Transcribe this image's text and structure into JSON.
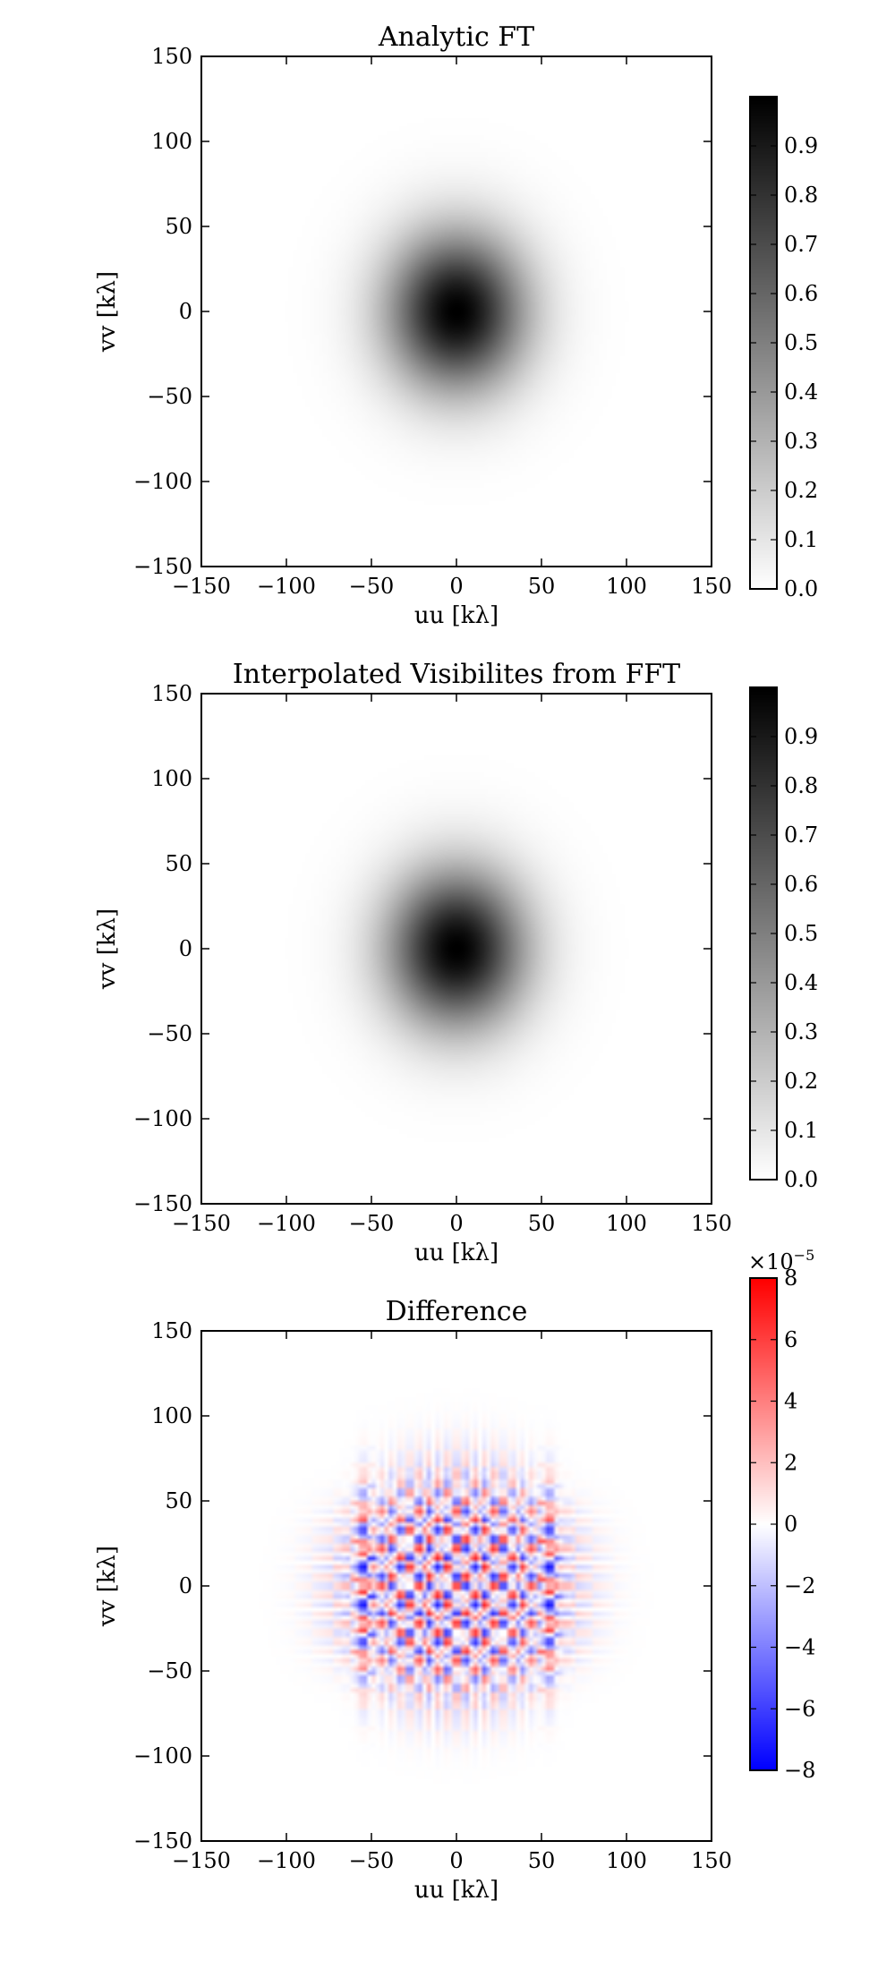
{
  "chart_data": [
    {
      "type": "heatmap",
      "title": "Analytic FT",
      "xlabel": "uu [kλ]",
      "ylabel": "vv [kλ]",
      "xlim": [
        -150,
        150
      ],
      "ylim": [
        -150,
        150
      ],
      "xticks": [
        -150,
        -100,
        -50,
        0,
        50,
        100,
        150
      ],
      "yticks": [
        -150,
        -100,
        -50,
        0,
        50,
        100,
        150
      ],
      "xtick_labels": [
        "−150",
        "−100",
        "−50",
        "0",
        "50",
        "100",
        "150"
      ],
      "ytick_labels": [
        "−150",
        "−100",
        "−50",
        "0",
        "50",
        "100",
        "150"
      ],
      "colormap": "gray_r",
      "grid": false,
      "function": "exp(-(u^2/(2*sx^2) + v^2/(2*sy^2)))",
      "parameters": {
        "amplitude": 1.0,
        "center": [
          0,
          0
        ],
        "sigma_u": 28,
        "sigma_v": 32
      },
      "colorbar": {
        "range": [
          0.0,
          1.0
        ],
        "ticks": [
          0.0,
          0.1,
          0.2,
          0.3,
          0.4,
          0.5,
          0.6,
          0.7,
          0.8,
          0.9
        ],
        "tick_labels": [
          "0.0",
          "0.1",
          "0.2",
          "0.3",
          "0.4",
          "0.5",
          "0.6",
          "0.7",
          "0.8",
          "0.9"
        ]
      }
    },
    {
      "type": "heatmap",
      "title": "Interpolated Visibilites from FFT",
      "xlabel": "uu [kλ]",
      "ylabel": "vv [kλ]",
      "xlim": [
        -150,
        150
      ],
      "ylim": [
        -150,
        150
      ],
      "xticks": [
        -150,
        -100,
        -50,
        0,
        50,
        100,
        150
      ],
      "yticks": [
        -150,
        -100,
        -50,
        0,
        50,
        100,
        150
      ],
      "xtick_labels": [
        "−150",
        "−100",
        "−50",
        "0",
        "50",
        "100",
        "150"
      ],
      "ytick_labels": [
        "−150",
        "−100",
        "−50",
        "0",
        "50",
        "100",
        "150"
      ],
      "colormap": "gray_r",
      "grid": false,
      "function": "exp(-(u^2/(2*sx^2) + v^2/(2*sy^2)))",
      "parameters": {
        "amplitude": 1.0,
        "center": [
          0,
          0
        ],
        "sigma_u": 28,
        "sigma_v": 32
      },
      "colorbar": {
        "range": [
          0.0,
          1.0
        ],
        "ticks": [
          0.0,
          0.1,
          0.2,
          0.3,
          0.4,
          0.5,
          0.6,
          0.7,
          0.8,
          0.9
        ],
        "tick_labels": [
          "0.0",
          "0.1",
          "0.2",
          "0.3",
          "0.4",
          "0.5",
          "0.6",
          "0.7",
          "0.8",
          "0.9"
        ]
      }
    },
    {
      "type": "heatmap",
      "title": "Difference",
      "xlabel": "uu [kλ]",
      "ylabel": "vv [kλ]",
      "xlim": [
        -150,
        150
      ],
      "ylim": [
        -150,
        150
      ],
      "xticks": [
        -150,
        -100,
        -50,
        0,
        50,
        100,
        150
      ],
      "yticks": [
        -150,
        -100,
        -50,
        0,
        50,
        100,
        150
      ],
      "xtick_labels": [
        "−150",
        "−100",
        "−50",
        "0",
        "50",
        "100",
        "150"
      ],
      "ytick_labels": [
        "−150",
        "−100",
        "−50",
        "0",
        "50",
        "100",
        "150"
      ],
      "colormap": "bwr",
      "grid": false,
      "function": "checkerboard ripple residual, peak ≈ 8e-5",
      "parameters": {
        "amplitude": 8e-05,
        "envelope_radius": 75
      },
      "colorbar": {
        "range": [
          -8,
          8
        ],
        "ticks": [
          -8,
          -6,
          -4,
          -2,
          0,
          2,
          4,
          6,
          8
        ],
        "tick_labels": [
          "−8",
          "−6",
          "−4",
          "−2",
          "0",
          "2",
          "4",
          "6",
          "8"
        ],
        "scale_label_base": "×10",
        "scale_label_exp": "−5"
      }
    }
  ]
}
